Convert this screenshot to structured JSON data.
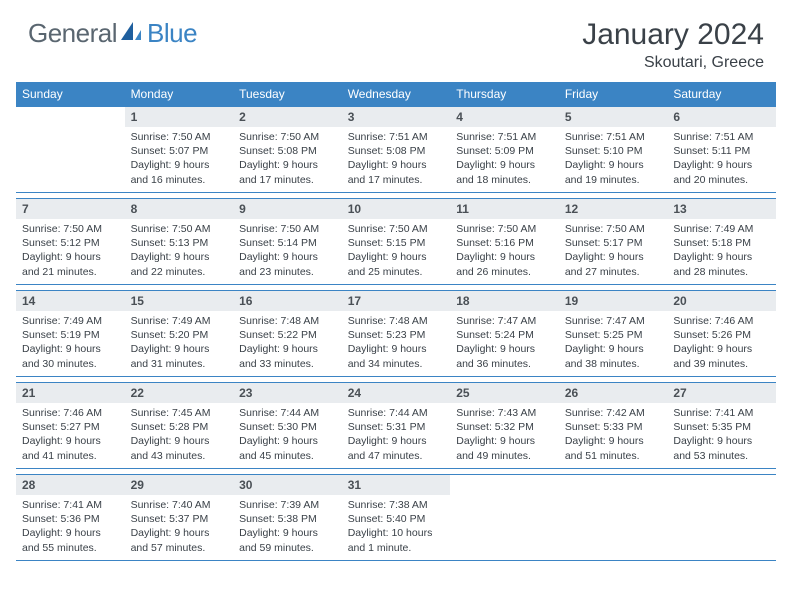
{
  "brand": {
    "part1": "General",
    "part2": "Blue"
  },
  "title": "January 2024",
  "location": "Skoutari, Greece",
  "colors": {
    "header_bg": "#3b84c4",
    "daynum_bg": "#e9ecef",
    "text": "#3a4148",
    "logo_gray": "#5a6670",
    "logo_blue": "#3b84c4",
    "border": "#3b84c4"
  },
  "dow": [
    "Sunday",
    "Monday",
    "Tuesday",
    "Wednesday",
    "Thursday",
    "Friday",
    "Saturday"
  ],
  "weeks": [
    [
      null,
      {
        "n": "1",
        "sr": "7:50 AM",
        "ss": "5:07 PM",
        "dl": "9 hours and 16 minutes."
      },
      {
        "n": "2",
        "sr": "7:50 AM",
        "ss": "5:08 PM",
        "dl": "9 hours and 17 minutes."
      },
      {
        "n": "3",
        "sr": "7:51 AM",
        "ss": "5:08 PM",
        "dl": "9 hours and 17 minutes."
      },
      {
        "n": "4",
        "sr": "7:51 AM",
        "ss": "5:09 PM",
        "dl": "9 hours and 18 minutes."
      },
      {
        "n": "5",
        "sr": "7:51 AM",
        "ss": "5:10 PM",
        "dl": "9 hours and 19 minutes."
      },
      {
        "n": "6",
        "sr": "7:51 AM",
        "ss": "5:11 PM",
        "dl": "9 hours and 20 minutes."
      }
    ],
    [
      {
        "n": "7",
        "sr": "7:50 AM",
        "ss": "5:12 PM",
        "dl": "9 hours and 21 minutes."
      },
      {
        "n": "8",
        "sr": "7:50 AM",
        "ss": "5:13 PM",
        "dl": "9 hours and 22 minutes."
      },
      {
        "n": "9",
        "sr": "7:50 AM",
        "ss": "5:14 PM",
        "dl": "9 hours and 23 minutes."
      },
      {
        "n": "10",
        "sr": "7:50 AM",
        "ss": "5:15 PM",
        "dl": "9 hours and 25 minutes."
      },
      {
        "n": "11",
        "sr": "7:50 AM",
        "ss": "5:16 PM",
        "dl": "9 hours and 26 minutes."
      },
      {
        "n": "12",
        "sr": "7:50 AM",
        "ss": "5:17 PM",
        "dl": "9 hours and 27 minutes."
      },
      {
        "n": "13",
        "sr": "7:49 AM",
        "ss": "5:18 PM",
        "dl": "9 hours and 28 minutes."
      }
    ],
    [
      {
        "n": "14",
        "sr": "7:49 AM",
        "ss": "5:19 PM",
        "dl": "9 hours and 30 minutes."
      },
      {
        "n": "15",
        "sr": "7:49 AM",
        "ss": "5:20 PM",
        "dl": "9 hours and 31 minutes."
      },
      {
        "n": "16",
        "sr": "7:48 AM",
        "ss": "5:22 PM",
        "dl": "9 hours and 33 minutes."
      },
      {
        "n": "17",
        "sr": "7:48 AM",
        "ss": "5:23 PM",
        "dl": "9 hours and 34 minutes."
      },
      {
        "n": "18",
        "sr": "7:47 AM",
        "ss": "5:24 PM",
        "dl": "9 hours and 36 minutes."
      },
      {
        "n": "19",
        "sr": "7:47 AM",
        "ss": "5:25 PM",
        "dl": "9 hours and 38 minutes."
      },
      {
        "n": "20",
        "sr": "7:46 AM",
        "ss": "5:26 PM",
        "dl": "9 hours and 39 minutes."
      }
    ],
    [
      {
        "n": "21",
        "sr": "7:46 AM",
        "ss": "5:27 PM",
        "dl": "9 hours and 41 minutes."
      },
      {
        "n": "22",
        "sr": "7:45 AM",
        "ss": "5:28 PM",
        "dl": "9 hours and 43 minutes."
      },
      {
        "n": "23",
        "sr": "7:44 AM",
        "ss": "5:30 PM",
        "dl": "9 hours and 45 minutes."
      },
      {
        "n": "24",
        "sr": "7:44 AM",
        "ss": "5:31 PM",
        "dl": "9 hours and 47 minutes."
      },
      {
        "n": "25",
        "sr": "7:43 AM",
        "ss": "5:32 PM",
        "dl": "9 hours and 49 minutes."
      },
      {
        "n": "26",
        "sr": "7:42 AM",
        "ss": "5:33 PM",
        "dl": "9 hours and 51 minutes."
      },
      {
        "n": "27",
        "sr": "7:41 AM",
        "ss": "5:35 PM",
        "dl": "9 hours and 53 minutes."
      }
    ],
    [
      {
        "n": "28",
        "sr": "7:41 AM",
        "ss": "5:36 PM",
        "dl": "9 hours and 55 minutes."
      },
      {
        "n": "29",
        "sr": "7:40 AM",
        "ss": "5:37 PM",
        "dl": "9 hours and 57 minutes."
      },
      {
        "n": "30",
        "sr": "7:39 AM",
        "ss": "5:38 PM",
        "dl": "9 hours and 59 minutes."
      },
      {
        "n": "31",
        "sr": "7:38 AM",
        "ss": "5:40 PM",
        "dl": "10 hours and 1 minute."
      },
      null,
      null,
      null
    ]
  ],
  "labels": {
    "sunrise": "Sunrise:",
    "sunset": "Sunset:",
    "daylight": "Daylight:"
  }
}
